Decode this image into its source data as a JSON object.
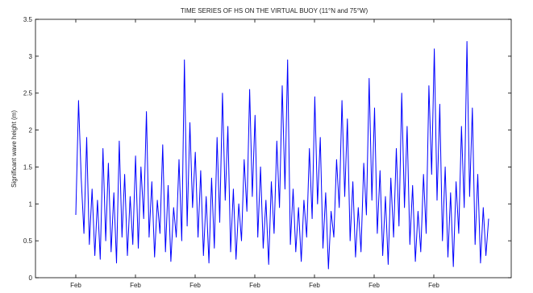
{
  "chart_data": {
    "type": "line",
    "title": "TIME SERIES OF HS ON THE VIRTUAL BUOY (11°N and 75°W)",
    "xlabel": "",
    "ylabel": "Significant wave height (m)",
    "ylim": [
      0,
      3.5
    ],
    "yticks": [
      "0",
      "0.5",
      "1",
      "1.5",
      "2",
      "2.5",
      "3",
      "3.5"
    ],
    "xticks": [
      "Feb",
      "Feb",
      "Feb",
      "Feb",
      "Feb",
      "Feb",
      "Feb"
    ],
    "grid": false,
    "color": "#0000ff",
    "series": [
      {
        "values": [
          0.85,
          2.4,
          1.35,
          0.6,
          1.9,
          0.45,
          1.2,
          0.3,
          1.05,
          0.25,
          1.75,
          0.5,
          1.55,
          0.35,
          1.15,
          0.2,
          1.85,
          0.55,
          1.4,
          0.3,
          1.1,
          0.45,
          1.65,
          0.4,
          1.5,
          0.8,
          2.25,
          0.55,
          1.3,
          0.28,
          1.05,
          0.6,
          1.8,
          0.35,
          1.25,
          0.22,
          0.95,
          0.55,
          1.6,
          0.5,
          2.95,
          0.7,
          2.1,
          0.95,
          1.7,
          0.55,
          1.45,
          0.3,
          1.1,
          0.2,
          1.35,
          0.4,
          1.9,
          0.75,
          2.5,
          1.05,
          2.05,
          0.35,
          1.2,
          0.25,
          1.0,
          0.5,
          1.6,
          0.9,
          2.55,
          1.1,
          2.2,
          0.55,
          1.5,
          0.4,
          1.05,
          0.18,
          1.3,
          0.6,
          1.85,
          0.95,
          2.6,
          1.2,
          2.95,
          0.45,
          1.2,
          0.35,
          0.95,
          0.22,
          1.05,
          0.55,
          1.75,
          0.8,
          2.45,
          1.0,
          1.9,
          0.4,
          1.15,
          0.12,
          0.9,
          0.55,
          1.6,
          0.95,
          2.4,
          1.1,
          2.15,
          0.5,
          1.3,
          0.28,
          0.95,
          0.35,
          1.55,
          0.85,
          2.7,
          1.05,
          2.3,
          0.6,
          1.45,
          0.3,
          1.1,
          0.18,
          1.35,
          0.55,
          1.75,
          0.7,
          2.5,
          0.95,
          2.05,
          0.45,
          1.25,
          0.22,
          0.9,
          0.35,
          1.4,
          0.6,
          2.6,
          1.4,
          3.1,
          1.05,
          2.35,
          0.5,
          1.5,
          0.28,
          1.15,
          0.15,
          1.3,
          0.6,
          2.05,
          0.95,
          3.2,
          1.1,
          2.3,
          0.45,
          1.4,
          0.2,
          0.95,
          0.3,
          0.8
        ]
      }
    ]
  }
}
